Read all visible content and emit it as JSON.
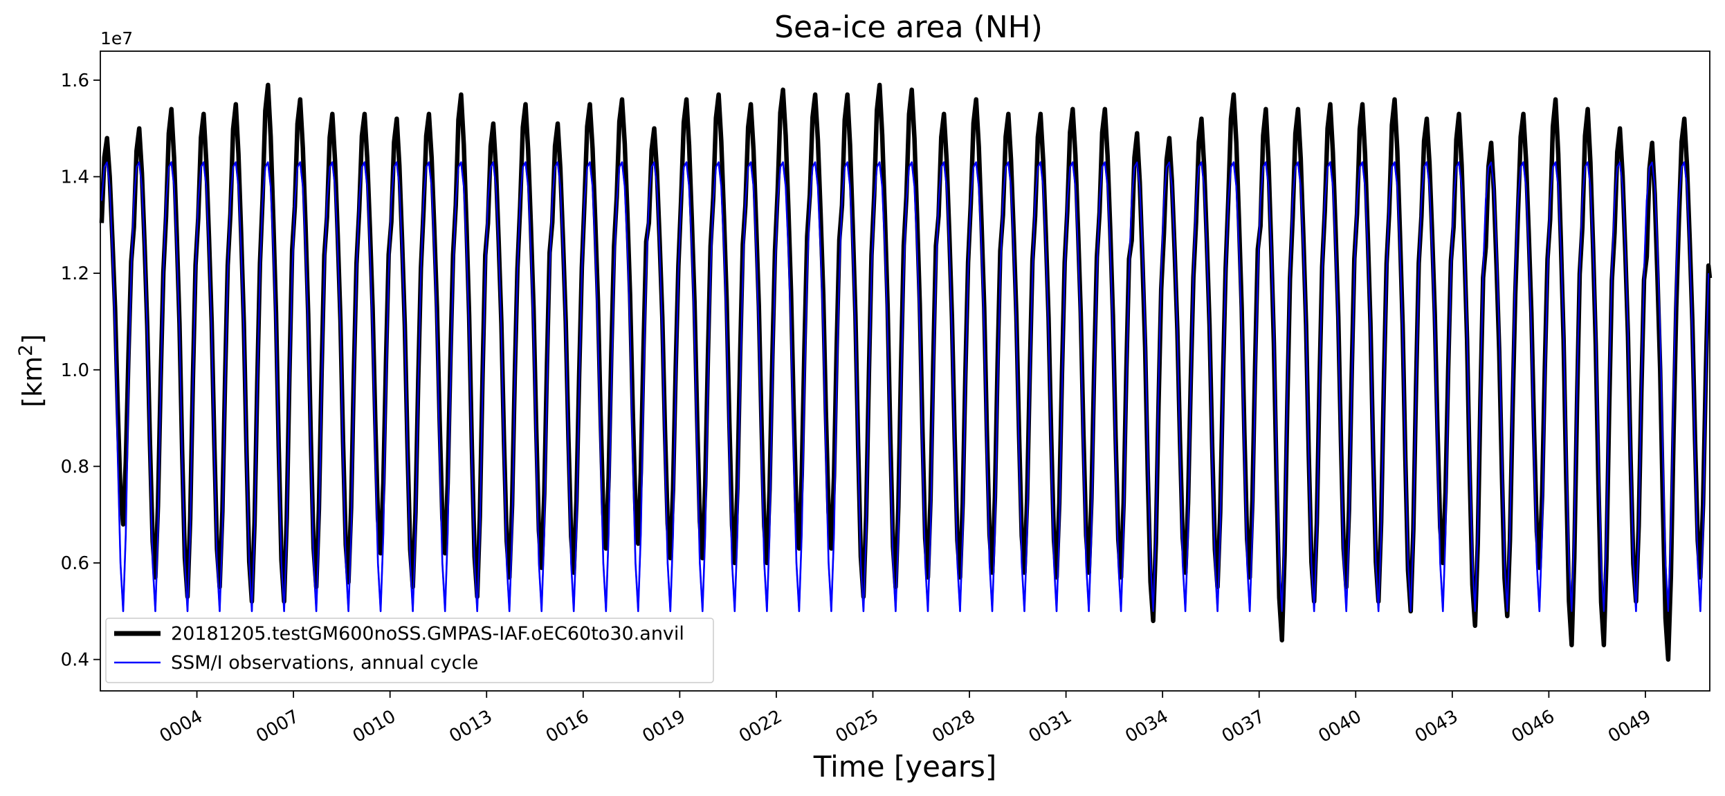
{
  "chart_data": {
    "type": "line",
    "title": "Sea-ice area (NH)",
    "xlabel": "Time [years]",
    "ylabel_base": "[km",
    "ylabel_sup": "2",
    "ylabel_end": "]",
    "y_offset_label": "1e7",
    "y_multiplier": 10000000,
    "xlim": [
      1.0,
      51.0
    ],
    "ylim": [
      0.335,
      1.66
    ],
    "yticks": [
      0.4,
      0.6,
      0.8,
      1.0,
      1.2,
      1.4,
      1.6
    ],
    "ytick_labels": [
      "0.4",
      "0.6",
      "0.8",
      "1.0",
      "1.2",
      "1.4",
      "1.6"
    ],
    "xticks": [
      4,
      7,
      10,
      13,
      16,
      19,
      22,
      25,
      28,
      31,
      34,
      37,
      40,
      43,
      46,
      49
    ],
    "xtick_labels": [
      "0004",
      "0007",
      "0010",
      "0013",
      "0016",
      "0019",
      "0022",
      "0025",
      "0028",
      "0031",
      "0034",
      "0037",
      "0040",
      "0043",
      "0046",
      "0049"
    ],
    "grid": false,
    "legend_position": "lower-left",
    "series": [
      {
        "name": "20181205.testGM600noSS.GMPAS-IAF.oEC60to30.anvil",
        "color": "#000000",
        "linewidth": "thick",
        "kind": "monthly",
        "annual_max": [
          1.48,
          1.5,
          1.54,
          1.53,
          1.55,
          1.59,
          1.56,
          1.53,
          1.53,
          1.52,
          1.53,
          1.57,
          1.51,
          1.55,
          1.51,
          1.55,
          1.56,
          1.5,
          1.56,
          1.57,
          1.55,
          1.58,
          1.57,
          1.57,
          1.59,
          1.58,
          1.53,
          1.56,
          1.53,
          1.53,
          1.54,
          1.54,
          1.49,
          1.48,
          1.52,
          1.57,
          1.54,
          1.54,
          1.55,
          1.55,
          1.56,
          1.52,
          1.53,
          1.47,
          1.53,
          1.56,
          1.54,
          1.5,
          1.47,
          1.52
        ],
        "annual_min": [
          0.68,
          0.57,
          0.53,
          0.55,
          0.52,
          0.52,
          0.55,
          0.56,
          0.62,
          0.55,
          0.62,
          0.53,
          0.57,
          0.59,
          0.58,
          0.63,
          0.64,
          0.61,
          0.61,
          0.6,
          0.6,
          0.63,
          0.63,
          0.53,
          0.55,
          0.57,
          0.57,
          0.58,
          0.58,
          0.57,
          0.58,
          0.57,
          0.48,
          0.58,
          0.55,
          0.57,
          0.44,
          0.52,
          0.55,
          0.52,
          0.5,
          0.6,
          0.47,
          0.49,
          0.59,
          0.43,
          0.43,
          0.52,
          0.4,
          0.57
        ],
        "last_value": 1.19
      },
      {
        "name": "SSM/I observations, annual cycle",
        "color": "#0000ff",
        "linewidth": "thin",
        "kind": "climatology",
        "monthly_climatology": [
          1.35,
          1.42,
          1.43,
          1.38,
          1.25,
          1.08,
          0.82,
          0.6,
          0.5,
          0.66,
          0.96,
          1.2
        ]
      }
    ]
  }
}
